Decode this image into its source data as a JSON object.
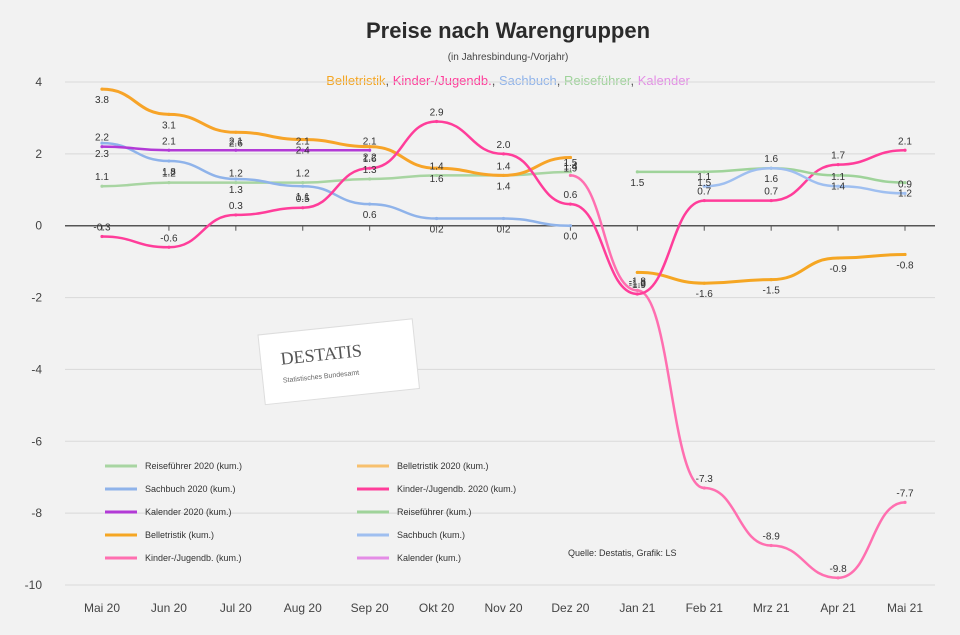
{
  "chart_data": {
    "type": "line",
    "title": "Preise nach Warengruppen",
    "subtitle": "(in Jahresbindung-/Vorjahr)",
    "subtitle_parts": [
      {
        "text": "Belletristik",
        "color": "#f5a623"
      },
      {
        "text": ", ",
        "color": "#555555"
      },
      {
        "text": "Kinder-/Jugendb.",
        "color": "#ff3d9a"
      },
      {
        "text": ", ",
        "color": "#555555"
      },
      {
        "text": "Sachbuch",
        "color": "#8fb3ea"
      },
      {
        "text": ", ",
        "color": "#555555"
      },
      {
        "text": "Reiseführer",
        "color": "#9fd39a"
      },
      {
        "text": ", ",
        "color": "#555555"
      },
      {
        "text": "Kalender",
        "color": "#e48ce6"
      }
    ],
    "categories": [
      "Mai 20",
      "Jun 20",
      "Jul 20",
      "Aug 20",
      "Sep 20",
      "Okt 20",
      "Nov 20",
      "Dez 20",
      "Jan 21",
      "Feb 21",
      "Mrz 21",
      "Apr 21",
      "Mai 21"
    ],
    "ylim": [
      -10,
      4
    ],
    "yticks": [
      4,
      2,
      0,
      -2,
      -4,
      -6,
      -8,
      -10
    ],
    "grid": true,
    "series": [
      {
        "name": "Reiseführer 2020 (kum.)",
        "color": "#a8d5a2",
        "width": 2.5,
        "values": [
          1.1,
          1.2,
          1.2,
          1.2,
          1.3,
          1.4,
          1.4,
          1.5,
          null,
          null,
          null,
          null,
          null
        ],
        "show_labels": true,
        "labels": [
          "1.1",
          "1.2",
          "1.2",
          "1.2",
          "1.3",
          "1.4",
          "1.4",
          "1.5",
          null,
          null,
          null,
          null,
          null
        ]
      },
      {
        "name": "Sachbuch 2020 (kum.)",
        "color": "#8fb3ea",
        "width": 2.5,
        "values": [
          2.3,
          1.8,
          1.3,
          1.1,
          0.6,
          0.2,
          0.2,
          0.0,
          null,
          null,
          null,
          null,
          null
        ],
        "show_labels": true,
        "labels": [
          "2.3",
          "1.8",
          "1.3",
          "1.1",
          "0.6",
          "0.2",
          "0.2",
          "0.0",
          null,
          null,
          null,
          null,
          null
        ]
      },
      {
        "name": "Kalender 2020 (kum.)",
        "color": "#b23ad6",
        "width": 2.5,
        "values": [
          2.2,
          2.1,
          2.1,
          2.1,
          2.1,
          null,
          null,
          null,
          null,
          null,
          null,
          null,
          null
        ],
        "show_labels": true,
        "labels": [
          "2.2",
          "2.1",
          "2.1",
          "2.1",
          "2.1",
          null,
          null,
          null,
          null,
          null,
          null,
          null,
          null
        ]
      },
      {
        "name": "Belletristik (kum.)",
        "color": "#f5a623",
        "width": 3,
        "values": [
          null,
          null,
          null,
          null,
          null,
          null,
          null,
          null,
          -1.3,
          -1.6,
          -1.5,
          -0.9,
          -0.8
        ],
        "show_labels": true,
        "labels": [
          null,
          null,
          null,
          null,
          null,
          null,
          null,
          null,
          "-1.3",
          "-1.6",
          "-1.5",
          "-0.9",
          "-0.8"
        ]
      },
      {
        "name": "Kinder-/Jugendb. (kum.)",
        "color": "#ff6fb0",
        "width": 2.5,
        "values": [
          null,
          null,
          null,
          null,
          null,
          null,
          null,
          1.4,
          -1.8,
          -7.3,
          -8.9,
          -9.8,
          -7.7
        ],
        "show_labels": true,
        "labels": [
          null,
          null,
          null,
          null,
          null,
          null,
          null,
          "1.4",
          "-1.8",
          "-7.3",
          "-8.9",
          "-9.8",
          "-7.7"
        ]
      },
      {
        "name": "Belletristik 2020 (kum.)",
        "color": "#f7a428",
        "width": 3,
        "values": [
          3.8,
          3.1,
          2.6,
          2.4,
          2.2,
          1.6,
          1.4,
          1.9,
          null,
          null,
          null,
          null,
          null
        ],
        "show_labels": true,
        "labels": [
          "3.8",
          "3.1",
          "2.6",
          "2.4",
          "2.2",
          "1.6",
          "1.4",
          "1.9",
          null,
          null,
          null,
          null,
          null
        ]
      },
      {
        "name": "Kinder-/Jugendb. 2020 (kum.)",
        "color": "#ff3d9a",
        "width": 2.5,
        "values": [
          -0.3,
          -0.6,
          0.3,
          0.5,
          1.6,
          2.9,
          2.0,
          0.6,
          -1.9,
          0.7,
          0.7,
          1.7,
          2.1
        ],
        "show_labels": true,
        "labels": [
          "-0.3",
          "-0.6",
          "0.3",
          "0.5",
          "1.6",
          "2.9",
          "2.0",
          "0.6",
          "-1.9",
          "0.7",
          "0.7",
          "1.7",
          "2.1"
        ]
      },
      {
        "name": "Reiseführer (kum.)",
        "color": "#9fd39a",
        "width": 2.5,
        "values": [
          null,
          null,
          null,
          null,
          null,
          null,
          null,
          null,
          1.5,
          1.5,
          1.6,
          1.4,
          1.2
        ],
        "show_labels": true,
        "labels": [
          null,
          null,
          null,
          null,
          null,
          null,
          null,
          null,
          "1.5",
          "1.5",
          "1.6",
          "1.4",
          "1.2"
        ]
      },
      {
        "name": "Sachbuch (kum.)",
        "color": "#9fbff0",
        "width": 2.5,
        "values": [
          null,
          null,
          null,
          null,
          null,
          null,
          null,
          null,
          null,
          1.1,
          1.6,
          1.1,
          0.9
        ],
        "show_labels": true,
        "labels": [
          null,
          null,
          null,
          null,
          null,
          null,
          null,
          null,
          null,
          "1.1",
          "1.6",
          "1.1",
          "0.9"
        ]
      },
      {
        "name": "Kalender (kum.)",
        "color": "#e48ce6",
        "width": 2.5,
        "values": [
          null,
          null,
          null,
          null,
          null,
          null,
          null,
          null,
          null,
          null,
          null,
          null,
          null
        ],
        "show_labels": false,
        "labels": []
      }
    ],
    "legend": [
      {
        "name": "Reiseführer 2020 (kum.)",
        "color": "#a8d5a2"
      },
      {
        "name": "Belletristik 2020 (kum.)",
        "color": "#f7c06e"
      },
      {
        "name": "Sachbuch 2020 (kum.)",
        "color": "#8fb3ea"
      },
      {
        "name": "Kinder-/Jugendb. 2020 (kum.)",
        "color": "#ff3d9a"
      },
      {
        "name": "Kalender 2020 (kum.)",
        "color": "#b23ad6"
      },
      {
        "name": "Reiseführer (kum.)",
        "color": "#9fd39a"
      },
      {
        "name": "Belletristik (kum.)",
        "color": "#f5a623"
      },
      {
        "name": "Sachbuch (kum.)",
        "color": "#9fbff0"
      },
      {
        "name": "Kinder-/Jugendb. (kum.)",
        "color": "#ff6fb0"
      },
      {
        "name": "Kalender (kum.)",
        "color": "#e48ce6"
      }
    ],
    "legend_position": "bottom-left",
    "source": "Quelle: Destatis, Grafik: LS",
    "logo_text": "DESTATIS",
    "logo_subtext": "Statistisches Bundesamt"
  }
}
